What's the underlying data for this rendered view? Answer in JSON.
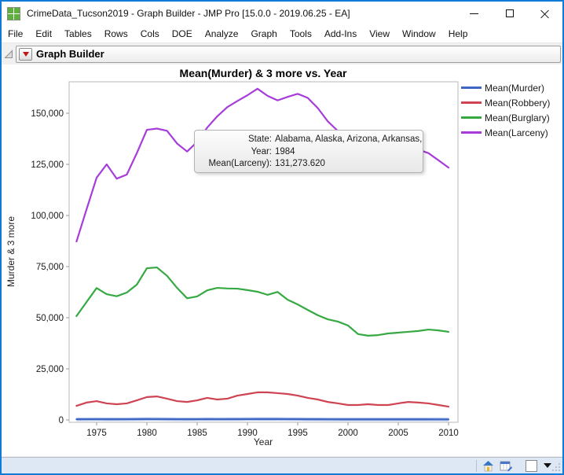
{
  "window": {
    "title": "CrimeData_Tucson2019 - Graph Builder - JMP Pro [15.0.0 - 2019.06.25 - EA]"
  },
  "menubar": {
    "items": [
      "File",
      "Edit",
      "Tables",
      "Rows",
      "Cols",
      "DOE",
      "Analyze",
      "Graph",
      "Tools",
      "Add-Ins",
      "View",
      "Window",
      "Help"
    ]
  },
  "report": {
    "header_title": "Graph Builder"
  },
  "tooltip": {
    "rows": [
      {
        "label": "State:",
        "value": "Alabama, Alaska, Arizona, Arkansas, ..."
      },
      {
        "label": "Year:",
        "value": "1984"
      },
      {
        "label": "Mean(Larceny):",
        "value": "131,273.620"
      }
    ]
  },
  "chart_data": {
    "type": "line",
    "title": "Mean(Murder) & 3 more vs. Year",
    "xlabel": "Year",
    "ylabel": "Murder & 3 more",
    "legend_position": "right",
    "grid": false,
    "xlim": [
      1972.3,
      2010.9
    ],
    "ylim": [
      -1500,
      165500
    ],
    "x_ticks": [
      1975,
      1980,
      1985,
      1990,
      1995,
      2000,
      2005,
      2010
    ],
    "y_ticks": {
      "values": [
        0,
        25000,
        50000,
        75000,
        100000,
        125000,
        150000
      ],
      "labels": [
        "0",
        "25,000",
        "50,000",
        "75,000",
        "100,000",
        "125,000",
        "150,000"
      ]
    },
    "x": [
      1973,
      1974,
      1975,
      1976,
      1977,
      1978,
      1979,
      1980,
      1981,
      1982,
      1983,
      1984,
      1985,
      1986,
      1987,
      1988,
      1989,
      1990,
      1991,
      1992,
      1993,
      1994,
      1995,
      1996,
      1997,
      1998,
      1999,
      2000,
      2001,
      2002,
      2003,
      2004,
      2005,
      2006,
      2007,
      2008,
      2009,
      2010
    ],
    "series": [
      {
        "name": "Mean(Murder)",
        "color": "#3f66c4",
        "values": [
          330,
          360,
          370,
          340,
          350,
          360,
          390,
          420,
          410,
          390,
          360,
          350,
          360,
          380,
          370,
          380,
          390,
          410,
          430,
          420,
          420,
          400,
          380,
          350,
          330,
          310,
          290,
          280,
          290,
          290,
          290,
          280,
          290,
          300,
          300,
          290,
          270,
          260
        ]
      },
      {
        "name": "Mean(Robbery)",
        "color": "#cf4452",
        "values": [
          6900,
          8500,
          9200,
          8100,
          7700,
          8100,
          9600,
          11200,
          11500,
          10400,
          9200,
          8800,
          9600,
          10800,
          10000,
          10400,
          11900,
          12700,
          13500,
          13500,
          13100,
          12700,
          11900,
          10800,
          10000,
          8800,
          8100,
          7300,
          7300,
          7700,
          7300,
          7300,
          8100,
          8800,
          8500,
          8100,
          7300,
          6500
        ]
      },
      {
        "name": "Mean(Burglary)",
        "color": "#36a943",
        "values": [
          50800,
          57700,
          64500,
          61500,
          60500,
          62300,
          66200,
          74200,
          74600,
          70500,
          64600,
          59500,
          60400,
          63400,
          64600,
          64300,
          64200,
          63500,
          62700,
          61200,
          62600,
          58800,
          56500,
          53800,
          51200,
          49200,
          48100,
          46200,
          42000,
          41200,
          41500,
          42300,
          42700,
          43100,
          43500,
          44200,
          43800,
          43100
        ]
      },
      {
        "name": "Mean(Larceny)",
        "color": "#a63ddb",
        "values": [
          87300,
          103000,
          118500,
          125000,
          118000,
          120000,
          130500,
          141900,
          142500,
          141400,
          135200,
          131273.62,
          136000,
          143000,
          148500,
          153000,
          156000,
          158800,
          162000,
          158500,
          156300,
          158000,
          159500,
          157500,
          152500,
          146000,
          141300,
          139000,
          138000,
          137400,
          136800,
          136000,
          134800,
          133500,
          132200,
          130500,
          127000,
          123400
        ]
      }
    ],
    "annotation": {
      "series": "Mean(Larceny)",
      "year": 1984,
      "value": 131273.62
    }
  }
}
